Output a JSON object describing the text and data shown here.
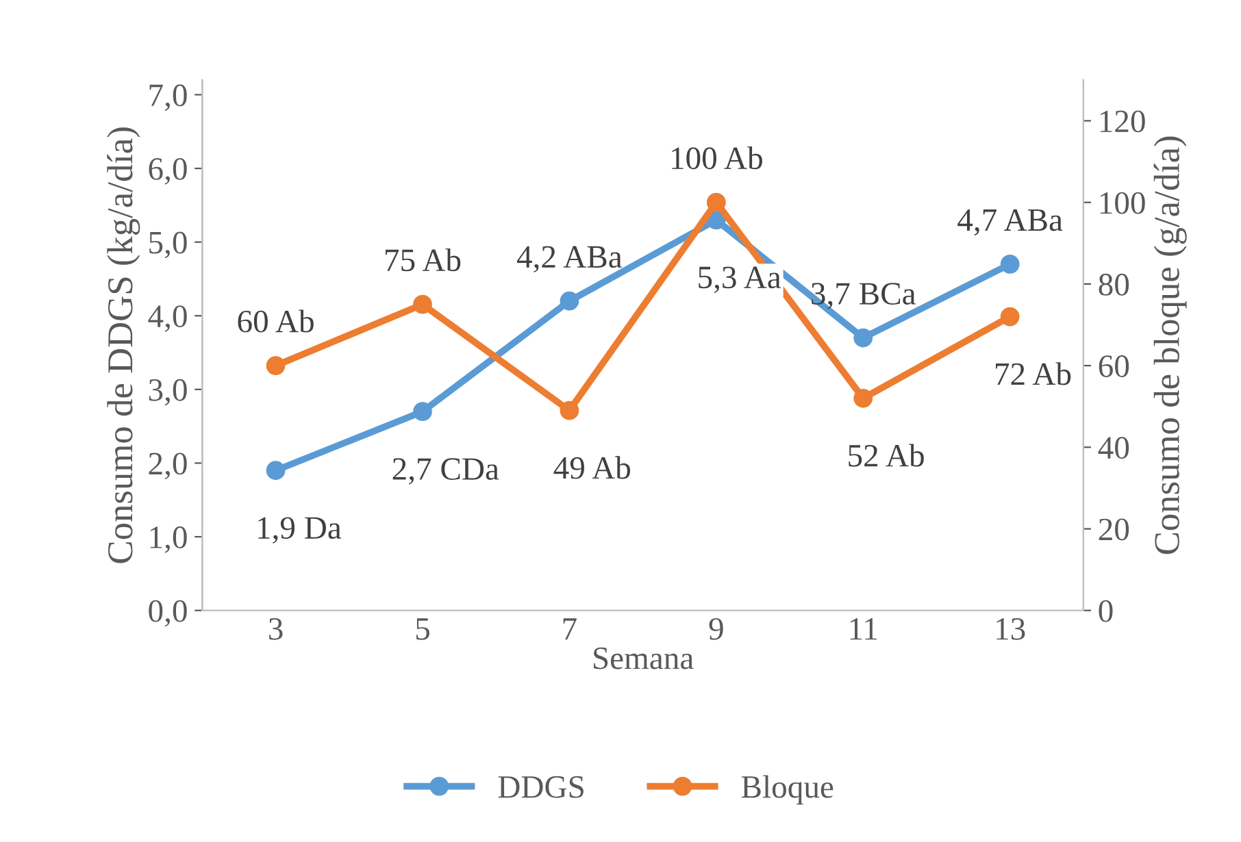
{
  "chart_data": {
    "type": "line",
    "xlabel": "Semana",
    "ylabel": "Consumo de DDGS (kg/a/día)",
    "y2label": "Consumo de bloque (g/a/día)",
    "categories": [
      "3",
      "5",
      "7",
      "9",
      "11",
      "13"
    ],
    "series": [
      {
        "name": "DDGS",
        "color": "#5b9bd5",
        "values": [
          1.9,
          2.7,
          4.2,
          5.3,
          3.7,
          4.7
        ],
        "value_labels": [
          "1,9 Da",
          "2,7 CDa",
          "4,2 ABa",
          "5,3 Aa",
          "3,7 BCa",
          "4,7 ABa"
        ]
      },
      {
        "name": "Bloque",
        "color": "#ed7d31",
        "axis": "y2",
        "values": [
          60,
          75,
          49,
          100,
          52,
          72
        ],
        "value_labels": [
          "60 Ab",
          "75 Ab",
          "49 Ab",
          "100 Ab",
          "52 Ab",
          "72 Ab"
        ]
      }
    ],
    "ylim": [
      0,
      7.2
    ],
    "yticks": [
      {
        "value": 0,
        "label": "0,0"
      },
      {
        "value": 1,
        "label": "1,0"
      },
      {
        "value": 2,
        "label": "2,0"
      },
      {
        "value": 3,
        "label": "3,0"
      },
      {
        "value": 4,
        "label": "4,0"
      },
      {
        "value": 5,
        "label": "5,0"
      },
      {
        "value": 6,
        "label": "6,0"
      },
      {
        "value": 7,
        "label": "7,0"
      }
    ],
    "y2lim": [
      0,
      130
    ],
    "y2ticks": [
      0,
      20,
      40,
      60,
      80,
      100,
      120
    ],
    "marker": "circle",
    "line_style": "solid",
    "grid": false,
    "legend": "bottom"
  }
}
